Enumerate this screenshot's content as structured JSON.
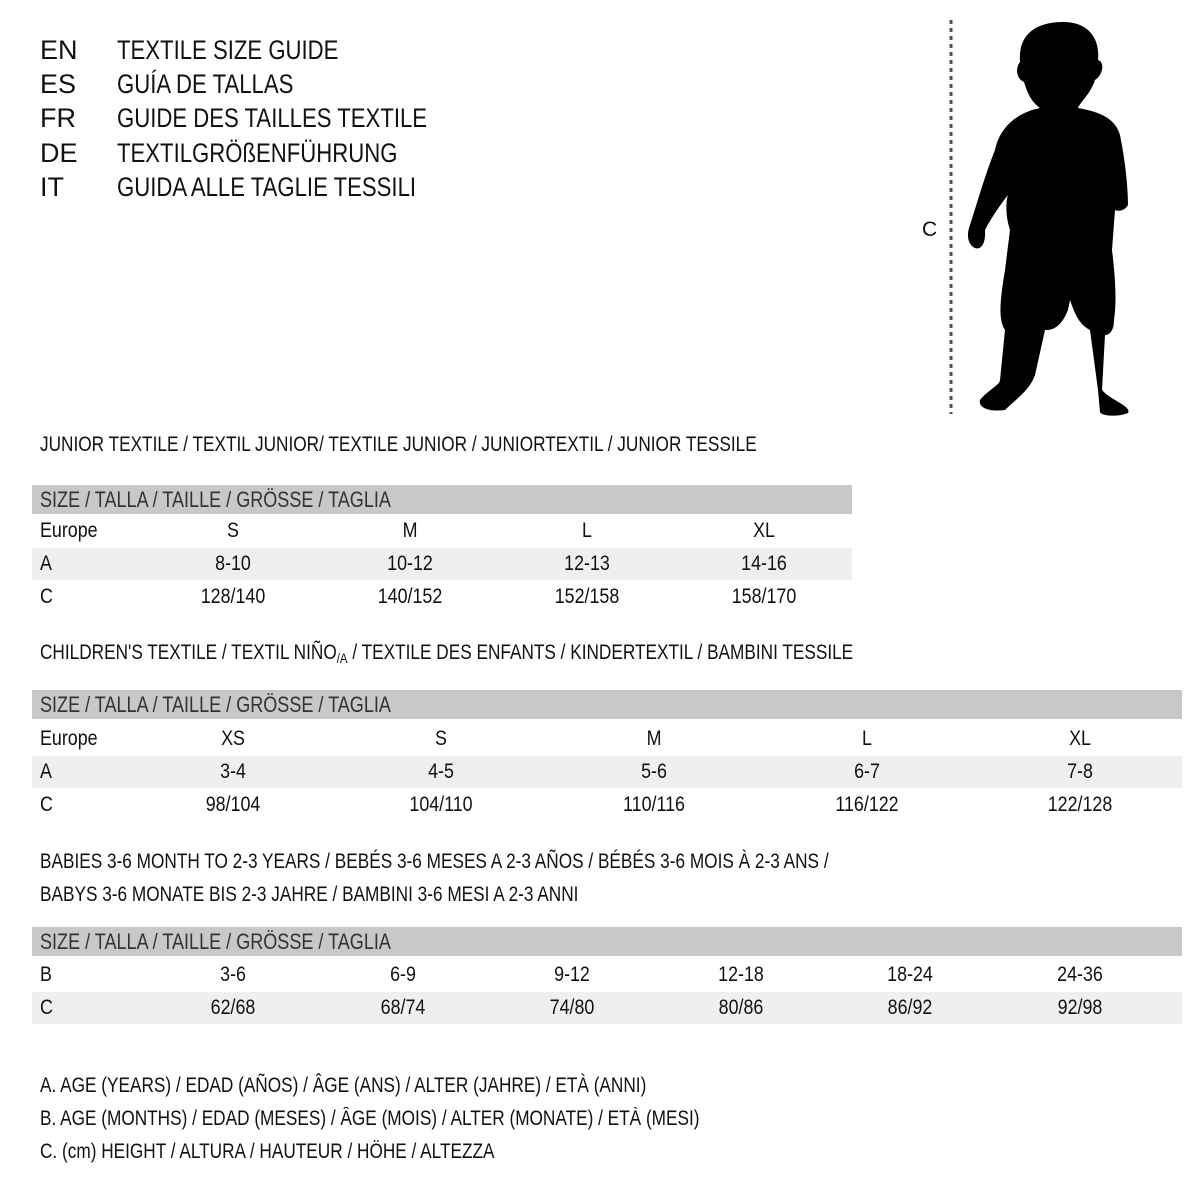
{
  "titles": [
    {
      "lang": "EN",
      "text": "TEXTILE SIZE GUIDE"
    },
    {
      "lang": "ES",
      "text": "GUÍA DE TALLAS"
    },
    {
      "lang": "FR",
      "text": "GUIDE DES TAILLES TEXTILE"
    },
    {
      "lang": "DE",
      "text": "TEXTILGRÖßENFÜHRUNG"
    },
    {
      "lang": "IT",
      "text": "GUIDA ALLE TAGLIE TESSILI"
    }
  ],
  "figure": {
    "measure_label": "C",
    "icon": "child-silhouette-icon"
  },
  "colors": {
    "header_band": "#c8c8c8",
    "alt_row": "#efefef",
    "text": "#111111"
  },
  "size_header": "SIZE / TALLA / TAILLE / GRÖSSE / TAGLIA",
  "junior": {
    "title": "JUNIOR TEXTILE / TEXTIL JUNIOR/ TEXTILE JUNIOR / JUNIORTEXTIL / JUNIOR TESSILE",
    "rows": [
      {
        "label": "Europe",
        "values": [
          "S",
          "M",
          "L",
          "XL"
        ]
      },
      {
        "label": "A",
        "values": [
          "8-10",
          "10-12",
          "12-13",
          "14-16"
        ]
      },
      {
        "label": "C",
        "values": [
          "128/140",
          "140/152",
          "152/158",
          "158/170"
        ]
      }
    ]
  },
  "children": {
    "title_before": "CHILDREN'S TEXTILE / TEXTIL NIÑO",
    "title_sub": "/A",
    "title_after": " / TEXTILE DES ENFANTS / KINDERTEXTIL / BAMBINI TESSILE",
    "rows": [
      {
        "label": "Europe",
        "values": [
          "XS",
          "S",
          "M",
          "L",
          "XL"
        ]
      },
      {
        "label": "A",
        "values": [
          "3-4",
          "4-5",
          "5-6",
          "6-7",
          "7-8"
        ]
      },
      {
        "label": "C",
        "values": [
          "98/104",
          "104/110",
          "110/116",
          "116/122",
          "122/128"
        ]
      }
    ]
  },
  "babies": {
    "title_line1": "BABIES 3-6 MONTH TO 2-3 YEARS / BEBÉS 3-6 MESES A 2-3 AÑOS / BÉBÉS 3-6 MOIS À 2-3 ANS /",
    "title_line2": "BABYS 3-6 MONATE BIS 2-3 JAHRE / BAMBINI 3-6 MESI A 2-3 ANNI",
    "rows": [
      {
        "label": "B",
        "values": [
          "3-6",
          "6-9",
          "9-12",
          "12-18",
          "18-24",
          "24-36"
        ]
      },
      {
        "label": "C",
        "values": [
          "62/68",
          "68/74",
          "74/80",
          "80/86",
          "86/92",
          "92/98"
        ]
      }
    ]
  },
  "legend": [
    "A. AGE (YEARS) / EDAD (AÑOS) / ÂGE (ANS) / ALTER (JAHRE) / ETÀ (ANNI)",
    "B. AGE (MONTHS) / EDAD (MESES) / ÂGE (MOIS) / ALTER (MONATE) / ETÀ (MESI)",
    "C. (cm) HEIGHT / ALTURA / HAUTEUR / HÖHE / ALTEZZA"
  ]
}
